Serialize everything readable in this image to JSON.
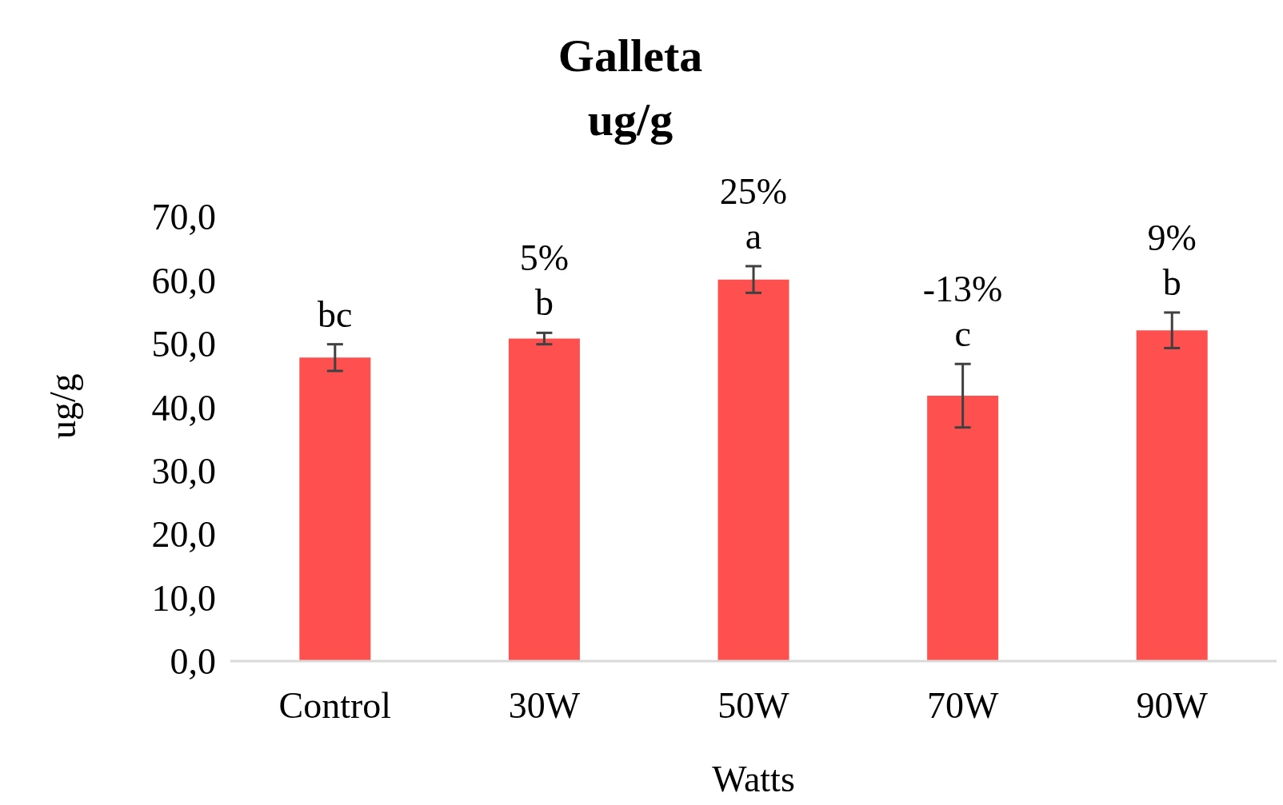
{
  "chart_data": {
    "type": "bar",
    "title": "Galleta",
    "subtitle": "ug/g",
    "xlabel": "Watts",
    "ylabel": "ug/g",
    "categories": [
      "Control",
      "30W",
      "50W",
      "70W",
      "90W"
    ],
    "values": [
      47.8,
      50.8,
      60.1,
      41.8,
      52.1
    ],
    "errors": [
      2.1,
      0.9,
      2.1,
      5.0,
      2.8
    ],
    "color": "#ff5050",
    "ylim": [
      0,
      70
    ],
    "yticks": [
      {
        "value": 0,
        "label": "0,0"
      },
      {
        "value": 10,
        "label": "10,0"
      },
      {
        "value": 20,
        "label": "20,0"
      },
      {
        "value": 30,
        "label": "30,0"
      },
      {
        "value": 40,
        "label": "40,0"
      },
      {
        "value": 50,
        "label": "50,0"
      },
      {
        "value": 60,
        "label": "60,0"
      },
      {
        "value": 70,
        "label": "70,0"
      }
    ],
    "grid": false,
    "legend": false,
    "annotations": [
      {
        "text": "bc",
        "x": "Control",
        "y": 47.8
      },
      {
        "text": "5%",
        "x": "30W",
        "y": 50.8
      },
      {
        "text": "b",
        "x": "30W",
        "y": 50.8
      },
      {
        "text": "25%",
        "x": "50W",
        "y": 60.1
      },
      {
        "text": "a",
        "x": "50W",
        "y": 60.1
      },
      {
        "text": "-13%",
        "x": "70W",
        "y": 41.8
      },
      {
        "text": "c",
        "x": "70W",
        "y": 41.8
      },
      {
        "text": "9%",
        "x": "90W",
        "y": 52.1
      },
      {
        "text": "b",
        "x": "90W",
        "y": 52.1
      }
    ]
  }
}
